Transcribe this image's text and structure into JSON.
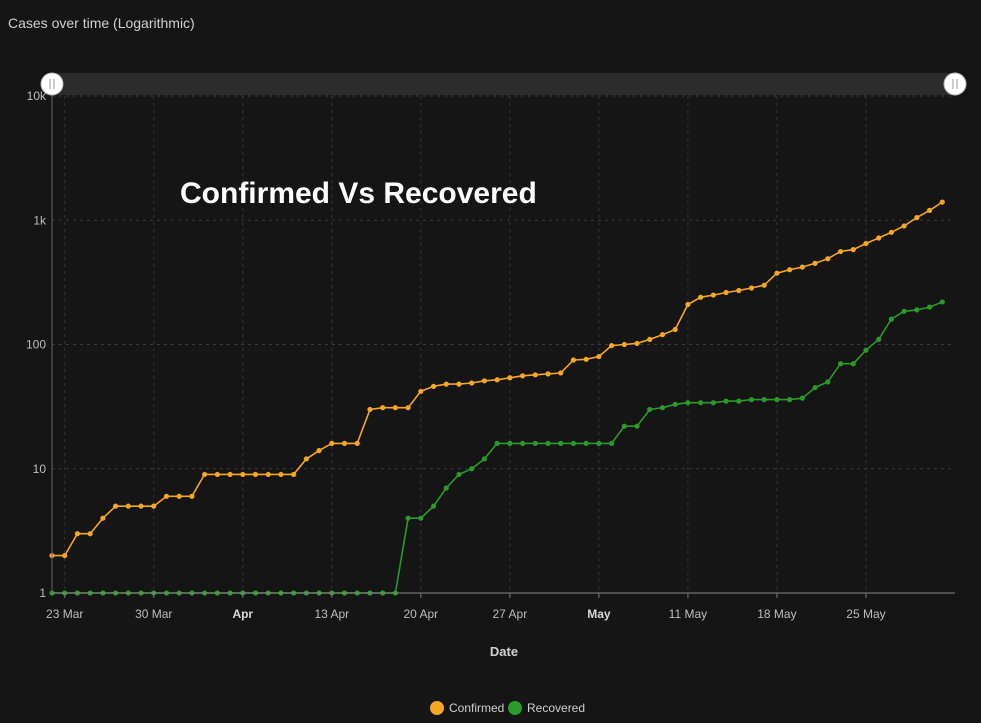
{
  "chart_data": {
    "type": "line",
    "title": "Cases over time (Logarithmic)",
    "annotation": "Confirmed Vs Recovered",
    "xlabel": "Date",
    "ylabel": "",
    "y_scale": "log",
    "ylim": [
      1,
      10000
    ],
    "xlim": [
      "2020-03-22",
      "2020-06-01"
    ],
    "y_ticks": [
      1,
      10,
      100,
      1000,
      10000
    ],
    "y_tick_labels": [
      "1",
      "10",
      "100",
      "1k",
      "10k"
    ],
    "x_ticks": [
      {
        "date": "2020-03-23",
        "label": "23 Mar",
        "bold": false
      },
      {
        "date": "2020-03-30",
        "label": "30 Mar",
        "bold": false
      },
      {
        "date": "2020-04-06",
        "label": "Apr",
        "bold": true
      },
      {
        "date": "2020-04-13",
        "label": "13 Apr",
        "bold": false
      },
      {
        "date": "2020-04-20",
        "label": "20 Apr",
        "bold": false
      },
      {
        "date": "2020-04-27",
        "label": "27 Apr",
        "bold": false
      },
      {
        "date": "2020-05-04",
        "label": "May",
        "bold": true
      },
      {
        "date": "2020-05-11",
        "label": "11 May",
        "bold": false
      },
      {
        "date": "2020-05-18",
        "label": "18 May",
        "bold": false
      },
      {
        "date": "2020-05-25",
        "label": "25 May",
        "bold": false
      }
    ],
    "grid": true,
    "legend_position": "bottom-center",
    "x": [
      "2020-03-22",
      "2020-03-23",
      "2020-03-24",
      "2020-03-25",
      "2020-03-26",
      "2020-03-27",
      "2020-03-28",
      "2020-03-29",
      "2020-03-30",
      "2020-03-31",
      "2020-04-01",
      "2020-04-02",
      "2020-04-03",
      "2020-04-04",
      "2020-04-05",
      "2020-04-06",
      "2020-04-07",
      "2020-04-08",
      "2020-04-09",
      "2020-04-10",
      "2020-04-11",
      "2020-04-12",
      "2020-04-13",
      "2020-04-14",
      "2020-04-15",
      "2020-04-16",
      "2020-04-17",
      "2020-04-18",
      "2020-04-19",
      "2020-04-20",
      "2020-04-21",
      "2020-04-22",
      "2020-04-23",
      "2020-04-24",
      "2020-04-25",
      "2020-04-26",
      "2020-04-27",
      "2020-04-28",
      "2020-04-29",
      "2020-04-30",
      "2020-05-01",
      "2020-05-02",
      "2020-05-03",
      "2020-05-04",
      "2020-05-05",
      "2020-05-06",
      "2020-05-07",
      "2020-05-08",
      "2020-05-09",
      "2020-05-10",
      "2020-05-11",
      "2020-05-12",
      "2020-05-13",
      "2020-05-14",
      "2020-05-15",
      "2020-05-16",
      "2020-05-17",
      "2020-05-18",
      "2020-05-19",
      "2020-05-20",
      "2020-05-21",
      "2020-05-22",
      "2020-05-23",
      "2020-05-24",
      "2020-05-25",
      "2020-05-26",
      "2020-05-27",
      "2020-05-28",
      "2020-05-29",
      "2020-05-30",
      "2020-05-31"
    ],
    "series": [
      {
        "name": "Confirmed",
        "color": "#f5a623",
        "values": [
          2,
          2,
          3,
          3,
          4,
          5,
          5,
          5,
          5,
          6,
          6,
          6,
          9,
          9,
          9,
          9,
          9,
          9,
          9,
          9,
          12,
          14,
          16,
          16,
          16,
          30,
          31,
          31,
          31,
          42,
          46,
          48,
          48,
          49,
          51,
          52,
          54,
          56,
          57,
          58,
          59,
          75,
          76,
          80,
          98,
          100,
          102,
          110,
          120,
          132,
          210,
          240,
          250,
          262,
          272,
          285,
          300,
          375,
          400,
          420,
          450,
          490,
          560,
          580,
          650,
          720,
          800,
          900,
          1050,
          1200,
          1400
        ]
      },
      {
        "name": "Recovered",
        "color": "#2a9a2a",
        "values": [
          1,
          1,
          1,
          1,
          1,
          1,
          1,
          1,
          1,
          1,
          1,
          1,
          1,
          1,
          1,
          1,
          1,
          1,
          1,
          1,
          1,
          1,
          1,
          1,
          1,
          1,
          1,
          1,
          4,
          4,
          5,
          7,
          9,
          10,
          12,
          16,
          16,
          16,
          16,
          16,
          16,
          16,
          16,
          16,
          16,
          22,
          22,
          30,
          31,
          33,
          34,
          34,
          34,
          35,
          35,
          36,
          36,
          36,
          36,
          37,
          45,
          50,
          70,
          70,
          90,
          110,
          160,
          185,
          190,
          200,
          220
        ]
      }
    ]
  }
}
